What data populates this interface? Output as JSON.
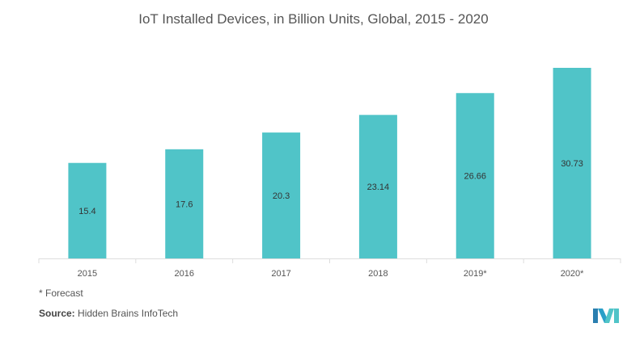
{
  "chart_data": {
    "type": "bar",
    "title": "IoT Installed Devices, in Billion Units, Global, 2015 - 2020",
    "categories": [
      "2015",
      "2016",
      "2017",
      "2018",
      "2019*",
      "2020*"
    ],
    "values": [
      15.4,
      17.6,
      20.3,
      23.14,
      26.66,
      30.73
    ],
    "value_labels": [
      "15.4",
      "17.6",
      "20.3",
      "23.14",
      "26.66",
      "30.73"
    ],
    "xlabel": "",
    "ylabel": "",
    "ylim": [
      0,
      30.73
    ],
    "grid": false,
    "bar_color": "#50c4c8"
  },
  "footnote": "* Forecast",
  "source_label": "Source:",
  "source_text": " Hidden Brains InfoTech",
  "logo_text": "MI"
}
